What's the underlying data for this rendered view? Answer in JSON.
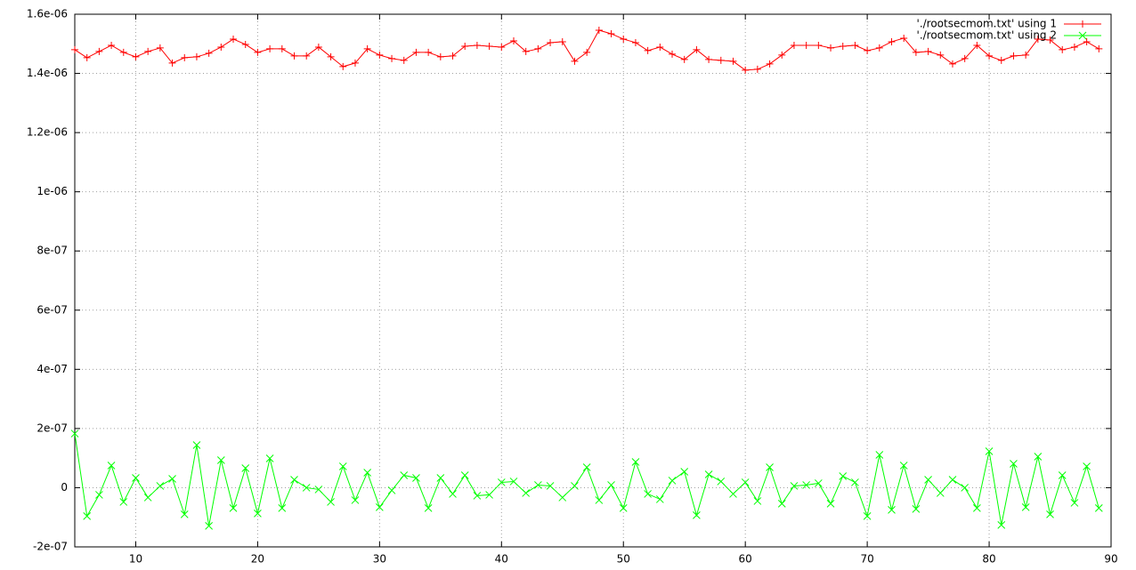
{
  "chart_data": {
    "type": "line",
    "x": [
      5,
      6,
      7,
      8,
      9,
      10,
      11,
      12,
      13,
      14,
      15,
      16,
      17,
      18,
      19,
      20,
      21,
      22,
      23,
      24,
      25,
      26,
      27,
      28,
      29,
      30,
      31,
      32,
      33,
      34,
      35,
      36,
      37,
      38,
      39,
      40,
      41,
      42,
      43,
      44,
      45,
      46,
      47,
      48,
      49,
      50,
      51,
      52,
      53,
      54,
      55,
      56,
      57,
      58,
      59,
      60,
      61,
      62,
      63,
      64,
      65,
      66,
      67,
      68,
      69,
      70,
      71,
      72,
      73,
      74,
      75,
      76,
      77,
      78,
      79,
      80,
      81,
      82,
      83,
      84,
      85,
      86,
      87,
      88,
      89
    ],
    "series": [
      {
        "name": "'./rootsecmom.txt' using 1",
        "color": "#ff0000",
        "marker": "plus",
        "values": [
          1.48e-06,
          1.453e-06,
          1.474e-06,
          1.495e-06,
          1.471e-06,
          1.456e-06,
          1.474e-06,
          1.486e-06,
          1.435e-06,
          1.453e-06,
          1.456e-06,
          1.468e-06,
          1.489e-06,
          1.516e-06,
          1.498e-06,
          1.471e-06,
          1.483e-06,
          1.483e-06,
          1.459e-06,
          1.459e-06,
          1.489e-06,
          1.456e-06,
          1.423e-06,
          1.435e-06,
          1.483e-06,
          1.462e-06,
          1.45e-06,
          1.444e-06,
          1.471e-06,
          1.471e-06,
          1.456e-06,
          1.459e-06,
          1.492e-06,
          1.495e-06,
          1.492e-06,
          1.489e-06,
          1.51e-06,
          1.474e-06,
          1.483e-06,
          1.504e-06,
          1.507e-06,
          1.441e-06,
          1.471e-06,
          1.546e-06,
          1.534e-06,
          1.516e-06,
          1.504e-06,
          1.477e-06,
          1.489e-06,
          1.465e-06,
          1.447e-06,
          1.48e-06,
          1.447e-06,
          1.444e-06,
          1.441e-06,
          1.411e-06,
          1.414e-06,
          1.432e-06,
          1.462e-06,
          1.495e-06,
          1.495e-06,
          1.495e-06,
          1.486e-06,
          1.492e-06,
          1.495e-06,
          1.477e-06,
          1.486e-06,
          1.507e-06,
          1.519e-06,
          1.471e-06,
          1.474e-06,
          1.462e-06,
          1.432e-06,
          1.45e-06,
          1.495e-06,
          1.459e-06,
          1.444e-06,
          1.459e-06,
          1.462e-06,
          1.516e-06,
          1.513e-06,
          1.48e-06,
          1.489e-06,
          1.507e-06,
          1.483e-06
        ]
      },
      {
        "name": "'./rootsecmom.txt' using 2",
        "color": "#00ff00",
        "marker": "cross",
        "values": [
          1.83e-07,
          -9.6e-08,
          -2.4e-08,
          7.5e-08,
          -4.8e-08,
          3.3e-08,
          -3.3e-08,
          6e-09,
          3e-08,
          -9e-08,
          1.44e-07,
          -1.29e-07,
          9.3e-08,
          -6.9e-08,
          6.6e-08,
          -8.7e-08,
          9.9e-08,
          -6.9e-08,
          2.7e-08,
          0,
          -6e-09,
          -4.8e-08,
          7.2e-08,
          -4.2e-08,
          5.1e-08,
          -6.6e-08,
          -9e-09,
          4.2e-08,
          3.3e-08,
          -6.9e-08,
          3.3e-08,
          -2.1e-08,
          4.2e-08,
          -2.7e-08,
          -2.4e-08,
          1.8e-08,
          2.1e-08,
          -1.8e-08,
          9e-09,
          6e-09,
          -3.3e-08,
          6e-09,
          6.9e-08,
          -4.2e-08,
          9e-09,
          -6.9e-08,
          8.7e-08,
          -2.1e-08,
          -3.9e-08,
          2.4e-08,
          5.4e-08,
          -9.3e-08,
          4.5e-08,
          2.1e-08,
          -2.1e-08,
          1.8e-08,
          -4.5e-08,
          6.9e-08,
          -5.4e-08,
          6e-09,
          9e-09,
          1.5e-08,
          -5.4e-08,
          3.9e-08,
          1.8e-08,
          -9.6e-08,
          1.11e-07,
          -7.5e-08,
          7.5e-08,
          -7.2e-08,
          2.7e-08,
          -1.8e-08,
          2.7e-08,
          0,
          -6.9e-08,
          1.23e-07,
          -1.26e-07,
          8.1e-08,
          -6.6e-08,
          1.05e-07,
          -9e-08,
          4.2e-08,
          -5.1e-08,
          7.2e-08,
          -6.9e-08
        ]
      }
    ],
    "xlim": [
      5,
      90
    ],
    "xticks": [
      10,
      20,
      30,
      40,
      50,
      60,
      70,
      80,
      90
    ],
    "ylim": [
      -2e-07,
      1.6e-06
    ],
    "yticks": [
      {
        "value": -2e-07,
        "label": "-2e-07"
      },
      0,
      {
        "value": 2e-07,
        "label": "2e-07"
      },
      {
        "value": 4e-07,
        "label": "4e-07"
      },
      {
        "value": 6e-07,
        "label": "6e-07"
      },
      {
        "value": 8e-07,
        "label": "8e-07"
      },
      {
        "value": 1e-06,
        "label": "1e-06"
      },
      {
        "value": 1.2e-06,
        "label": "1.2e-06"
      },
      {
        "value": 1.4e-06,
        "label": "1.4e-06"
      },
      {
        "value": 1.6e-06,
        "label": "1.6e-06"
      }
    ],
    "grid": true,
    "legend": "top-right"
  }
}
